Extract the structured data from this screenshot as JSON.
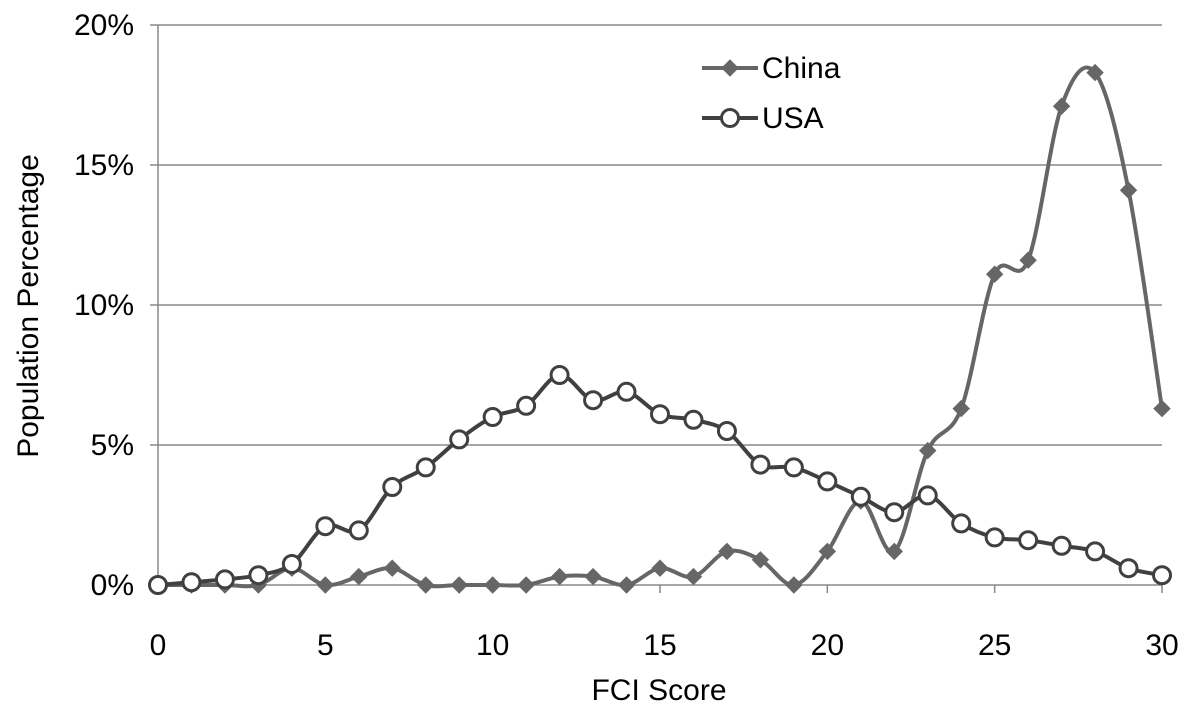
{
  "chart_data": {
    "type": "line",
    "xlabel": "FCI Score",
    "ylabel": "Population Percentage",
    "xlim": [
      0,
      30
    ],
    "ylim": [
      0,
      20
    ],
    "x_ticks": [
      "0",
      "5",
      "10",
      "15",
      "20",
      "25",
      "30"
    ],
    "y_ticks": [
      "0%",
      "5%",
      "10%",
      "15%",
      "20%"
    ],
    "grid": "horizontal",
    "legend_position": "top-right",
    "x": [
      0,
      1,
      2,
      3,
      4,
      5,
      6,
      7,
      8,
      9,
      10,
      11,
      12,
      13,
      14,
      15,
      16,
      17,
      18,
      19,
      20,
      21,
      22,
      23,
      24,
      25,
      26,
      27,
      28,
      29,
      30
    ],
    "series": [
      {
        "name": "China",
        "marker": "diamond",
        "color": "#666666",
        "values": [
          0,
          0,
          0,
          0,
          0.6,
          0,
          0.3,
          0.6,
          0,
          0,
          0,
          0,
          0.3,
          0.3,
          0,
          0.6,
          0.3,
          1.2,
          0.9,
          0,
          1.2,
          3.0,
          1.2,
          4.8,
          6.3,
          11.1,
          11.6,
          17.1,
          18.3,
          14.1,
          6.3
        ]
      },
      {
        "name": "USA",
        "marker": "circle-open",
        "color": "#404040",
        "values": [
          0,
          0.1,
          0.2,
          0.35,
          0.75,
          2.1,
          1.95,
          3.5,
          4.2,
          5.2,
          6.0,
          6.4,
          7.5,
          6.6,
          6.9,
          6.1,
          5.9,
          5.5,
          4.3,
          4.2,
          3.7,
          3.15,
          2.6,
          3.2,
          2.2,
          1.7,
          1.6,
          1.4,
          1.2,
          0.6,
          0.35
        ]
      }
    ]
  }
}
